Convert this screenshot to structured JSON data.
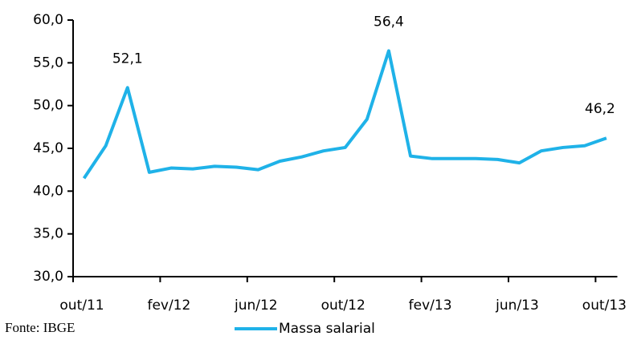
{
  "chart_data": {
    "type": "line",
    "source": "Fonte: IBGE",
    "categories": [
      "out/11",
      null,
      null,
      null,
      "fev/12",
      null,
      null,
      null,
      "jun/12",
      null,
      null,
      null,
      "out/12",
      null,
      null,
      null,
      "fev/13",
      null,
      null,
      null,
      "jun/13",
      null,
      null,
      null,
      "out/13"
    ],
    "series": [
      {
        "name": "Massa salarial",
        "color": "#1fb2e8",
        "values": [
          41.5,
          45.3,
          52.1,
          42.2,
          42.7,
          42.6,
          42.9,
          42.8,
          42.5,
          43.5,
          44.0,
          44.7,
          45.1,
          48.4,
          56.4,
          44.1,
          43.8,
          43.8,
          43.8,
          43.7,
          43.3,
          44.7,
          45.1,
          45.3,
          46.2
        ],
        "value_labels": [
          null,
          null,
          "52,1",
          null,
          null,
          null,
          null,
          null,
          null,
          null,
          null,
          null,
          null,
          null,
          "56,4",
          null,
          null,
          null,
          null,
          null,
          null,
          null,
          null,
          null,
          "46,2"
        ]
      }
    ],
    "ylim": [
      30,
      60
    ],
    "yticks": [
      {
        "value": 30,
        "label": "30,0"
      },
      {
        "value": 35,
        "label": "35,0"
      },
      {
        "value": 40,
        "label": "40,0"
      },
      {
        "value": 45,
        "label": "45,0"
      },
      {
        "value": 50,
        "label": "50,0"
      },
      {
        "value": 55,
        "label": "55,0"
      },
      {
        "value": 60,
        "label": "60,0"
      }
    ],
    "legend": "bottom"
  }
}
